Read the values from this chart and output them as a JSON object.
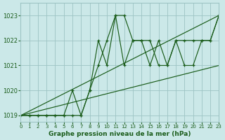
{
  "title": "Graphe pression niveau de la mer (hPa)",
  "bg_color": "#cbe8e8",
  "grid_color": "#9dc4c4",
  "line_color": "#1a5c1a",
  "xlim": [
    0,
    23
  ],
  "ylim": [
    1018.75,
    1023.5
  ],
  "yticks": [
    1019,
    1020,
    1021,
    1022,
    1023
  ],
  "xticks": [
    0,
    1,
    2,
    3,
    4,
    5,
    6,
    7,
    8,
    9,
    10,
    11,
    12,
    13,
    14,
    15,
    16,
    17,
    18,
    19,
    20,
    21,
    22,
    23
  ],
  "series": [
    [
      1019,
      1019,
      1019,
      1019,
      1019,
      1019,
      1019,
      1019,
      1020,
      1021,
      1022,
      1023,
      1023,
      1022,
      1022,
      1022,
      1021,
      1021,
      1022,
      1021,
      1021,
      1022,
      1022,
      1023
    ],
    [
      1019,
      1019,
      1019,
      1019,
      1019,
      1019,
      1020,
      1019,
      1020,
      1022,
      1021,
      1023,
      1021,
      1022,
      1022,
      1021,
      1022,
      1021,
      1022,
      1022,
      1022,
      1022,
      1022,
      1023
    ],
    [
      1019,
      1019.087,
      1019.174,
      1019.261,
      1019.348,
      1019.435,
      1019.522,
      1019.609,
      1019.696,
      1019.783,
      1019.87,
      1019.957,
      1020.043,
      1020.13,
      1020.217,
      1020.304,
      1020.391,
      1020.478,
      1020.565,
      1020.652,
      1020.739,
      1020.826,
      1020.913,
      1021.0
    ],
    [
      1019,
      1019.174,
      1019.348,
      1019.522,
      1019.696,
      1019.87,
      1020.043,
      1020.217,
      1020.391,
      1020.565,
      1020.739,
      1020.913,
      1021.087,
      1021.261,
      1021.435,
      1021.609,
      1021.783,
      1021.957,
      1022.13,
      1022.304,
      1022.478,
      1022.652,
      1022.826,
      1023.0
    ]
  ]
}
